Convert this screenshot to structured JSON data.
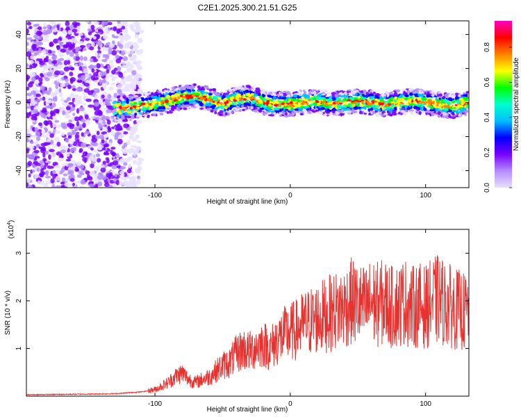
{
  "chart_data": [
    {
      "type": "heatmap",
      "title": "C2E1.2025.300.21.51.G25",
      "xlabel": "Height of straight line (km)",
      "ylabel": "Frequency (Hz)",
      "xlim": [
        -195,
        132
      ],
      "ylim": [
        -50,
        48
      ],
      "xticks": [
        "-100",
        "0",
        "100"
      ],
      "yticks": [
        "40",
        "20",
        "0",
        "-20",
        "-40"
      ],
      "ridge": {
        "description_free_points_x": [
          -130,
          -110,
          -90,
          -80,
          -70,
          -60,
          -50,
          -40,
          -30,
          -20,
          -10,
          0,
          10,
          20,
          30,
          40,
          50,
          60,
          70,
          80,
          90,
          100,
          110,
          120,
          130
        ],
        "frequency_hz": [
          -4,
          -2,
          1,
          3,
          4,
          2,
          -1,
          2,
          3,
          0,
          -1,
          -1,
          0,
          1,
          -1,
          0,
          1,
          0,
          -1,
          0,
          1,
          0,
          -1,
          -2,
          0
        ]
      },
      "colorbar": {
        "label": "Normalized spectral amplitude",
        "range": [
          0,
          0.95
        ],
        "ticks": [
          "0.0",
          "0.2",
          "0.4",
          "0.6",
          "0.8"
        ],
        "colors": [
          "#e8e0ff",
          "#b38cff",
          "#7a00ff",
          "#0000ff",
          "#00bfff",
          "#00ffcc",
          "#00ff00",
          "#ffff00",
          "#ff8000",
          "#ff0000",
          "#ff00c0"
        ]
      }
    },
    {
      "type": "line",
      "xlabel": "Height of straight line (km)",
      "ylabel": "SNR (10 * v/v)",
      "scale_label": "(x10",
      "scale_exp": "4",
      "xlim": [
        -195,
        132
      ],
      "ylim": [
        0,
        3.5
      ],
      "xticks": [
        "-100",
        "0",
        "100"
      ],
      "yticks": [
        "1",
        "2",
        "3"
      ],
      "color": "#e8322f",
      "series": [
        {
          "name": "SNR",
          "x": [
            -195,
            -160,
            -130,
            -120,
            -110,
            -100,
            -95,
            -90,
            -85,
            -80,
            -75,
            -70,
            -65,
            -60,
            -55,
            -50,
            -45,
            -40,
            -35,
            -30,
            -25,
            -20,
            -15,
            -10,
            -5,
            0,
            5,
            10,
            15,
            20,
            25,
            30,
            35,
            40,
            45,
            50,
            55,
            60,
            65,
            70,
            75,
            80,
            85,
            90,
            95,
            100,
            105,
            110,
            115,
            120,
            125,
            130
          ],
          "y": [
            0.02,
            0.03,
            0.04,
            0.06,
            0.08,
            0.12,
            0.18,
            0.25,
            0.35,
            0.42,
            0.3,
            0.25,
            0.3,
            0.35,
            0.45,
            0.55,
            0.6,
            0.75,
            0.85,
            0.8,
            0.9,
            0.95,
            0.85,
            1.0,
            1.1,
            1.15,
            1.2,
            1.3,
            1.35,
            1.4,
            1.45,
            1.5,
            1.55,
            1.6,
            1.7,
            1.65,
            1.6,
            1.7,
            1.65,
            1.7,
            1.6,
            1.65,
            1.7,
            1.6,
            1.65,
            1.6,
            1.7,
            1.75,
            1.65,
            1.6,
            1.55,
            1.5
          ]
        }
      ]
    }
  ]
}
